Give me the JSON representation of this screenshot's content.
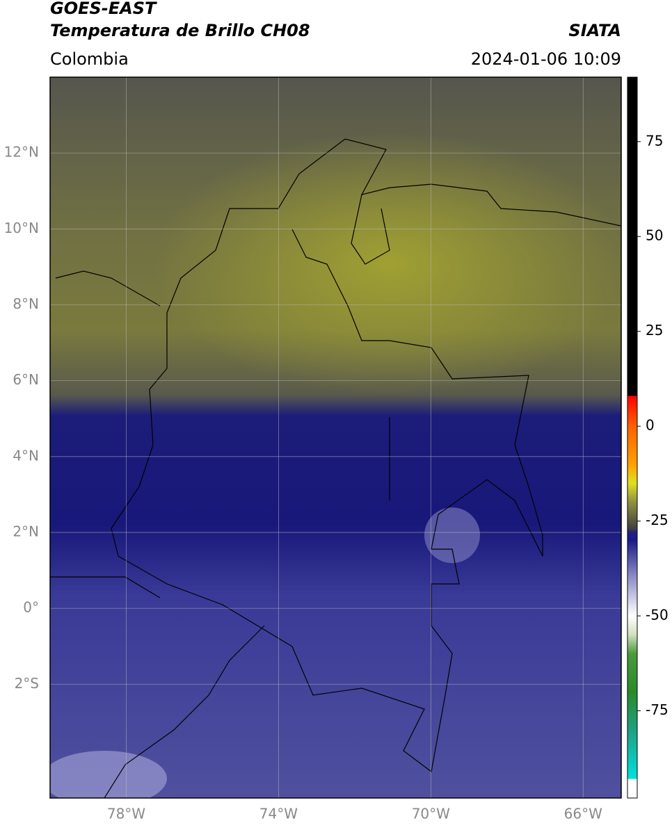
{
  "chart_data": {
    "type": "map",
    "title": "GOES-EAST",
    "subtitle": "Temperatura de Brillo CH08",
    "source": "SIATA",
    "region": "Colombia",
    "timestamp": "2024-01-06 10:09",
    "xlim": [
      -80,
      -65
    ],
    "ylim": [
      -5,
      14
    ],
    "xticks": [
      {
        "value": -78,
        "label": "78°W"
      },
      {
        "value": -74,
        "label": "74°W"
      },
      {
        "value": -70,
        "label": "70°W"
      },
      {
        "value": -66,
        "label": "66°W"
      }
    ],
    "yticks": [
      {
        "value": -2,
        "label": "2°S"
      },
      {
        "value": 0,
        "label": "0°"
      },
      {
        "value": 2,
        "label": "2°N"
      },
      {
        "value": 4,
        "label": "4°N"
      },
      {
        "value": 6,
        "label": "6°N"
      },
      {
        "value": 8,
        "label": "8°N"
      },
      {
        "value": 10,
        "label": "10°N"
      },
      {
        "value": 12,
        "label": "12°N"
      }
    ],
    "grid": true,
    "clim": [
      -98,
      92
    ],
    "cticks": [
      -75,
      -50,
      -25,
      0,
      25,
      50,
      75
    ],
    "colormap": [
      {
        "value": -98,
        "color": "#ffffff"
      },
      {
        "value": -93,
        "color": "#ffffff"
      },
      {
        "value": -93,
        "color": "#00e0e0"
      },
      {
        "value": -80,
        "color": "#20a080"
      },
      {
        "value": -70,
        "color": "#2a8a2a"
      },
      {
        "value": -60,
        "color": "#4a9a3a"
      },
      {
        "value": -55,
        "color": "#d0e0c0"
      },
      {
        "value": -50,
        "color": "#ffffff"
      },
      {
        "value": -40,
        "color": "#9090c8"
      },
      {
        "value": -30,
        "color": "#1a1a8a"
      },
      {
        "value": -28,
        "color": "#202080"
      },
      {
        "value": -27,
        "color": "#404040"
      },
      {
        "value": -20,
        "color": "#909040"
      },
      {
        "value": -15,
        "color": "#e0e020"
      },
      {
        "value": -10,
        "color": "#ffa000"
      },
      {
        "value": 0,
        "color": "#ff6000"
      },
      {
        "value": 8,
        "color": "#ff0000"
      },
      {
        "value": 8,
        "color": "#000000"
      },
      {
        "value": 92,
        "color": "#000000"
      }
    ]
  }
}
